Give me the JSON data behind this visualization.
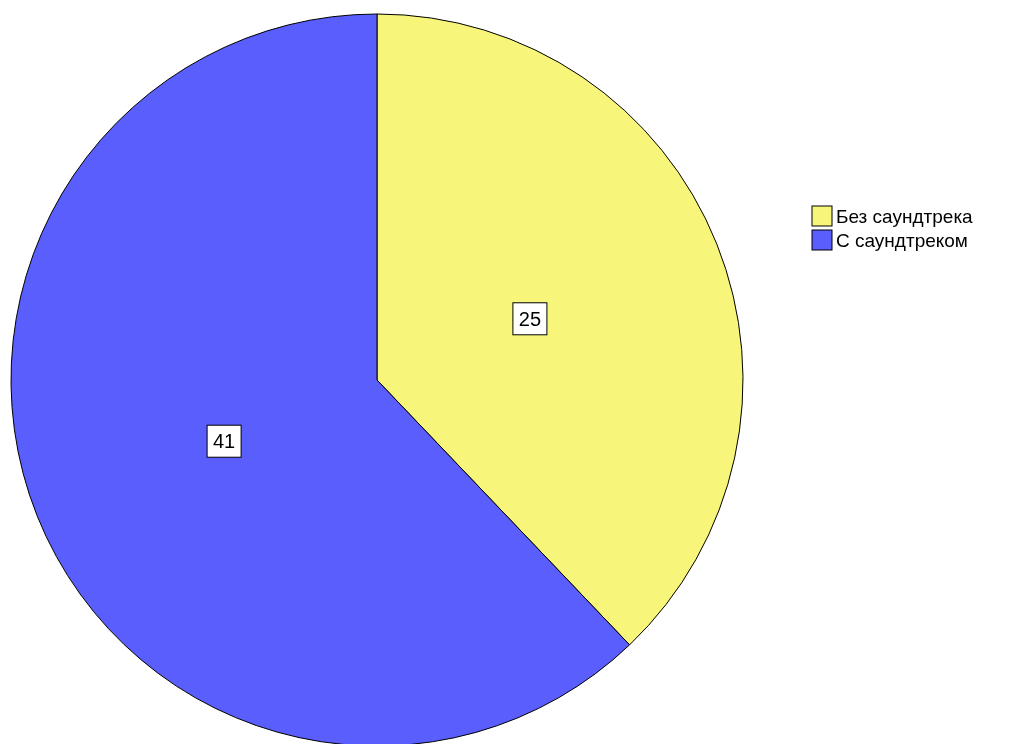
{
  "chart_data": {
    "type": "pie",
    "categories": [
      "Без саундтрека",
      "С саундтреком"
    ],
    "values": [
      25,
      41
    ],
    "colors": [
      "#f8f67a",
      "#5a5efc"
    ],
    "data_labels": true,
    "legend": "right"
  }
}
